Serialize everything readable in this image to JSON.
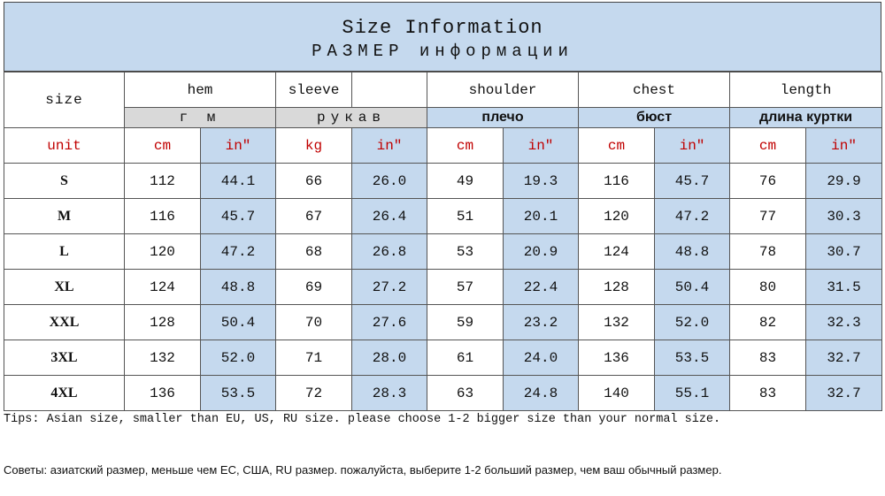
{
  "title": {
    "en": "Size Information",
    "ru": "РАЗМЕР информации"
  },
  "columns": {
    "size_label": "size",
    "hem": "hem",
    "sleeve": "sleeve",
    "shoulder": "shoulder",
    "chest": "chest",
    "length": "length"
  },
  "ru_columns": {
    "hem": "г м",
    "sleeve": "рукав",
    "shoulder": "плечо",
    "chest": "бюст",
    "length": "длина куртки"
  },
  "units": {
    "label": "unit",
    "cm": "cm",
    "in": "in″",
    "kg": "kg"
  },
  "rows": [
    {
      "size": "S",
      "values": [
        "112",
        "44.1",
        "66",
        "26.0",
        "49",
        "19.3",
        "116",
        "45.7",
        "76",
        "29.9"
      ]
    },
    {
      "size": "M",
      "values": [
        "116",
        "45.7",
        "67",
        "26.4",
        "51",
        "20.1",
        "120",
        "47.2",
        "77",
        "30.3"
      ]
    },
    {
      "size": "L",
      "values": [
        "120",
        "47.2",
        "68",
        "26.8",
        "53",
        "20.9",
        "124",
        "48.8",
        "78",
        "30.7"
      ]
    },
    {
      "size": "XL",
      "values": [
        "124",
        "48.8",
        "69",
        "27.2",
        "57",
        "22.4",
        "128",
        "50.4",
        "80",
        "31.5"
      ]
    },
    {
      "size": "XXL",
      "values": [
        "128",
        "50.4",
        "70",
        "27.6",
        "59",
        "23.2",
        "132",
        "52.0",
        "82",
        "32.3"
      ]
    },
    {
      "size": "3XL",
      "values": [
        "132",
        "52.0",
        "71",
        "28.0",
        "61",
        "24.0",
        "136",
        "53.5",
        "83",
        "32.7"
      ]
    },
    {
      "size": "4XL",
      "values": [
        "136",
        "53.5",
        "72",
        "28.3",
        "63",
        "24.8",
        "140",
        "55.1",
        "83",
        "32.7"
      ]
    }
  ],
  "tips": {
    "en": "Tips: Asian size, smaller than EU, US, RU size. please choose 1-2 bigger size than your normal size.",
    "ru": "Советы: азиатский размер, меньше чем ЕС, США, RU размер. пожалуйста, выберите 1-2 больший размер, чем ваш обычный размер."
  },
  "colors": {
    "header_blue": "#c5d9ee",
    "header_grey": "#d9d9d9",
    "unit_red": "#c00000"
  }
}
